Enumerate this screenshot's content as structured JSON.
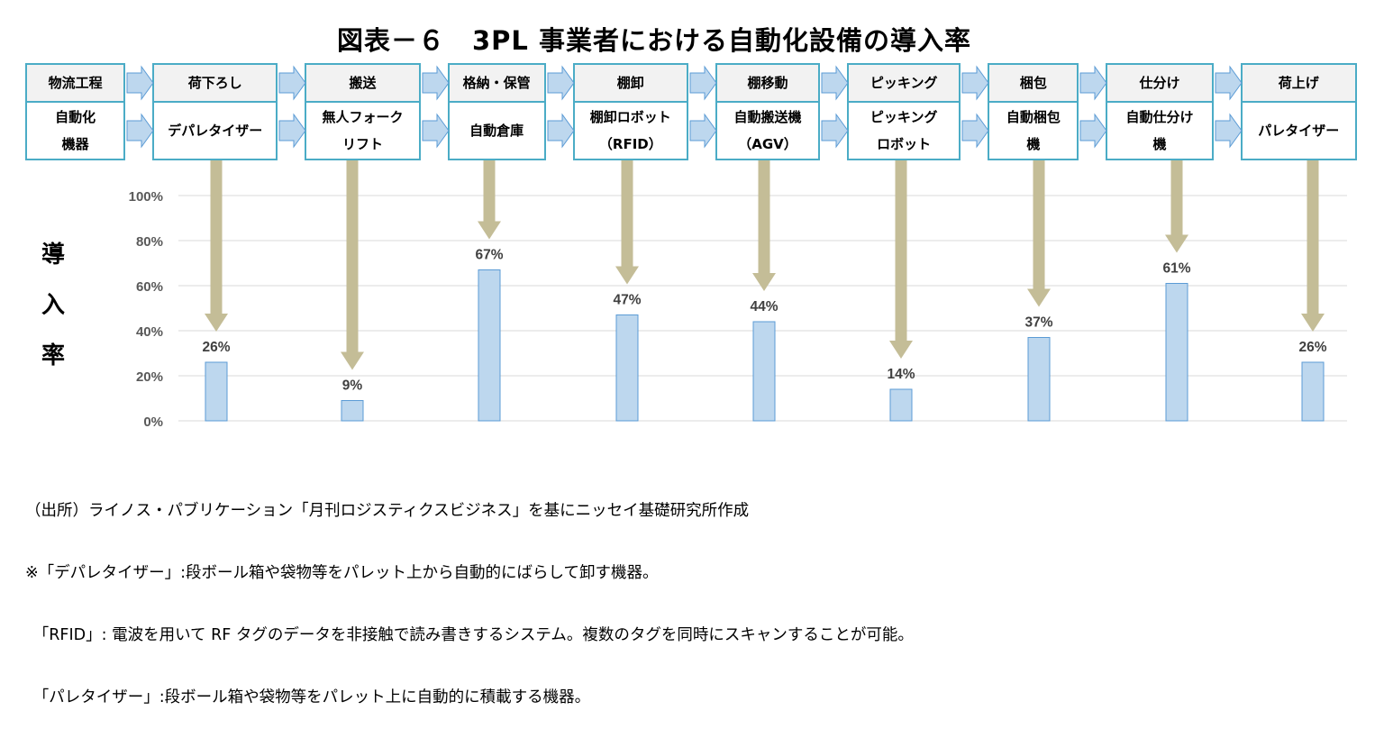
{
  "title": "図表－６　3PL 事業者における自動化設備の導入率",
  "process_table": {
    "row1_header": "物流工程",
    "row2_header": [
      "自動化",
      "機器"
    ],
    "stages": [
      {
        "stage": "荷下ろし",
        "equipment": [
          "デパレタイザー"
        ]
      },
      {
        "stage": "搬送",
        "equipment": [
          "無人フォーク",
          "リフト"
        ]
      },
      {
        "stage": "格納・保管",
        "equipment": [
          "自動倉庫"
        ]
      },
      {
        "stage": "棚卸",
        "equipment": [
          "棚卸ロボット",
          "（RFID）"
        ]
      },
      {
        "stage": "棚移動",
        "equipment": [
          "自動搬送機",
          "（AGV）"
        ]
      },
      {
        "stage": "ピッキング",
        "equipment": [
          "ピッキング",
          "ロボット"
        ]
      },
      {
        "stage": "梱包",
        "equipment": [
          "自動梱包",
          "機"
        ]
      },
      {
        "stage": "仕分け",
        "equipment": [
          "自動仕分け",
          "機"
        ]
      },
      {
        "stage": "荷上げ",
        "equipment": [
          "パレタイザー"
        ]
      }
    ]
  },
  "ylabel_chars": [
    "導",
    "入",
    "率"
  ],
  "chart_data": {
    "type": "bar",
    "categories": [
      "デパレタイザー",
      "無人フォークリフト",
      "自動倉庫",
      "棚卸ロボット（RFID）",
      "自動搬送機（AGV）",
      "ピッキングロボット",
      "自動梱包機",
      "自動仕分け機",
      "パレタイザー"
    ],
    "values": [
      26,
      9,
      67,
      47,
      44,
      14,
      37,
      61,
      26
    ],
    "value_labels": [
      "26%",
      "9%",
      "67%",
      "47%",
      "44%",
      "14%",
      "37%",
      "61%",
      "26%"
    ],
    "ylim": [
      0,
      100
    ],
    "yticks": [
      0,
      20,
      40,
      60,
      80,
      100
    ],
    "ytick_labels": [
      "0%",
      "20%",
      "40%",
      "60%",
      "80%",
      "100%"
    ],
    "ylabel": "導入率",
    "grid": true,
    "legend": "none"
  },
  "notes": [
    "（出所）ライノス・パブリケーション「月刊ロジスティクスビジネス」を基にニッセイ基礎研究所作成",
    "※「デパレタイザー」:段ボール箱や袋物等をパレット上から自動的にばらして卸す機器。",
    "　「RFID」: 電波を用いて RF タグのデータを非接触で読み書きするシステム。複数のタグを同時にスキャンすることが可能。",
    "　「パレタイザー」:段ボール箱や袋物等をパレット上に自動的に積載する機器。"
  ],
  "colors": {
    "table_border": "#4bacc6",
    "header_fill": "#f2f2f2",
    "arrow_fill": "#bdd7ee",
    "arrow_stroke": "#5b9bd5",
    "bar_fill": "#bdd7ee",
    "bar_stroke": "#5b9bd5",
    "pointer_fill": "#c4bd97",
    "grid": "#d9d9d9",
    "tick_text": "#595959"
  }
}
